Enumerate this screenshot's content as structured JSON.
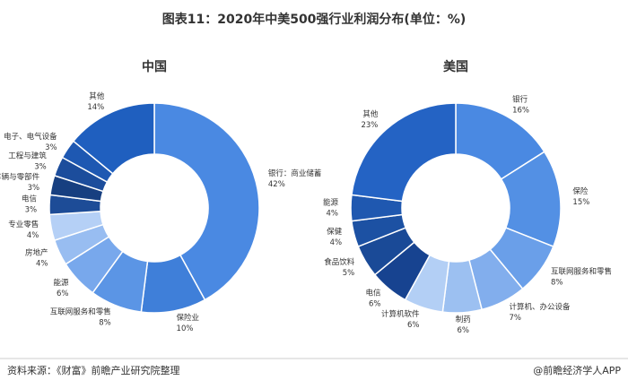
{
  "title": "图表11：2020年中美500强行业利润分布(单位：%)",
  "source": "资料来源：《财富》前瞻产业研究院整理",
  "credit": "@前瞻经济学人APP",
  "chart_data": [
    {
      "type": "donut",
      "title": "中国",
      "categories": [
        "银行：商业储蓄",
        "保险业",
        "互联网服务和零售",
        "能源",
        "房地产",
        "专业零售",
        "电信",
        "车辆与零部件",
        "工程与建筑",
        "电子、电气设备",
        "其他"
      ],
      "values": [
        42,
        10,
        8,
        6,
        4,
        4,
        3,
        3,
        3,
        3,
        14
      ],
      "value_labels": [
        "42%",
        "10%",
        "8%",
        "6%",
        "4%",
        "4%",
        "3%",
        "3%",
        "3%",
        "3%",
        "14%"
      ],
      "colors": [
        "#4a89e2",
        "#3f7fd9",
        "#5b95e5",
        "#78a8ec",
        "#98bdf1",
        "#b5d0f6",
        "#1d4c97",
        "#173f80",
        "#1c4d9c",
        "#1e58b2",
        "#1f5fbf"
      ]
    },
    {
      "type": "donut",
      "title": "美国",
      "categories": [
        "银行",
        "保险",
        "互联网服务和零售",
        "计算机、办公设备",
        "制药",
        "计算机软件",
        "电信",
        "食品饮料",
        "保健",
        "能源",
        "其他"
      ],
      "values": [
        16,
        15,
        8,
        7,
        6,
        6,
        6,
        5,
        4,
        4,
        23
      ],
      "value_labels": [
        "16%",
        "15%",
        "8%",
        "7%",
        "6%",
        "6%",
        "6%",
        "5%",
        "4%",
        "4%",
        "23%"
      ],
      "colors": [
        "#4a89e2",
        "#5390e4",
        "#6a9fe9",
        "#82aeed",
        "#9cc0f1",
        "#b3cff5",
        "#174390",
        "#1a4a97",
        "#1c51a3",
        "#1f58b0",
        "#2463c4"
      ]
    }
  ]
}
